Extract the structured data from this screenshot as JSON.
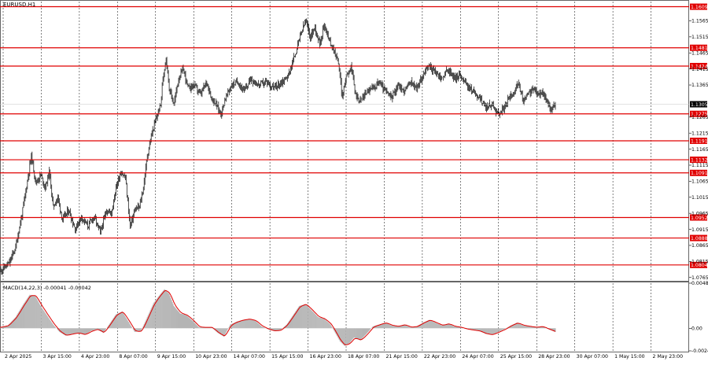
{
  "window": {
    "symbol_title": "EURUSD,H1"
  },
  "indicator": {
    "label": "MACD(14,22,3) -0.00041 -0.00042"
  },
  "colors": {
    "background": "#ffffff",
    "candle": "#000000",
    "level_line": "#e00000",
    "level_tag_bg": "#e00000",
    "level_tag_text": "#ffffff",
    "current_tag_bg": "#000000",
    "current_tag_text": "#ffffff",
    "grid": "#000000",
    "macd_hist": "#b4b4b4",
    "macd_signal": "#e00000"
  },
  "chart_data": [
    {
      "type": "candlestick",
      "symbol": "EURUSD",
      "timeframe": "H1",
      "grid": true,
      "ylim": [
        1.0757,
        1.1625
      ],
      "price_ticks": [
        "1.1565",
        "1.1515",
        "1.1465",
        "1.1415",
        "1.1365",
        "1.1265",
        "1.1215",
        "1.1165",
        "1.1115",
        "1.1065",
        "1.1015",
        "1.0965",
        "1.0915",
        "1.0865",
        "1.0815",
        "1.0765"
      ],
      "x_ticks": [
        "2 Apr 2025",
        "3 Apr 15:00",
        "4 Apr 23:00",
        "8 Apr 07:00",
        "9 Apr 15:00",
        "10 Apr 23:00",
        "14 Apr 07:00",
        "15 Apr 15:00",
        "16 Apr 23:00",
        "18 Apr 07:00",
        "21 Apr 15:00",
        "22 Apr 23:00",
        "24 Apr 07:00",
        "25 Apr 15:00",
        "28 Apr 23:00",
        "30 Apr 07:00",
        "1 May 15:00",
        "2 May 23:00"
      ],
      "levels": [
        {
          "label": "1.1609",
          "value": 1.1609
        },
        {
          "label": "1.1481",
          "value": 1.1481
        },
        {
          "label": "1.1424",
          "value": 1.1424
        },
        {
          "label": "1.1275",
          "value": 1.1275
        },
        {
          "label": "1.1191",
          "value": 1.1191
        },
        {
          "label": "1.1132",
          "value": 1.1132
        },
        {
          "label": "1.1091",
          "value": 1.1091
        },
        {
          "label": "1.0952",
          "value": 1.0952
        },
        {
          "label": "1.0888",
          "value": 1.0888
        },
        {
          "label": "1.0804",
          "value": 1.0804
        }
      ],
      "current_price": {
        "label": "1.1305",
        "value": 1.1305
      },
      "price_path": [
        [
          0,
          1.0785
        ],
        [
          12,
          1.081
        ],
        [
          20,
          1.086
        ],
        [
          28,
          1.096
        ],
        [
          34,
          1.105
        ],
        [
          40,
          1.1145
        ],
        [
          46,
          1.106
        ],
        [
          52,
          1.1085
        ],
        [
          58,
          1.1045
        ],
        [
          63,
          1.1095
        ],
        [
          68,
          1.0985
        ],
        [
          74,
          1.1015
        ],
        [
          80,
          1.0945
        ],
        [
          88,
          1.0975
        ],
        [
          96,
          1.0915
        ],
        [
          104,
          1.0955
        ],
        [
          112,
          1.0925
        ],
        [
          120,
          1.0955
        ],
        [
          128,
          1.0905
        ],
        [
          136,
          1.0975
        ],
        [
          142,
          1.0965
        ],
        [
          148,
          1.1045
        ],
        [
          154,
          1.1095
        ],
        [
          160,
          1.1075
        ],
        [
          166,
          1.0925
        ],
        [
          172,
          1.0975
        ],
        [
          178,
          1.0985
        ],
        [
          183,
          1.1045
        ],
        [
          188,
          1.1145
        ],
        [
          194,
          1.1215
        ],
        [
          200,
          1.1265
        ],
        [
          205,
          1.1305
        ],
        [
          208,
          1.1385
        ],
        [
          212,
          1.1455
        ],
        [
          216,
          1.1355
        ],
        [
          222,
          1.1305
        ],
        [
          228,
          1.1385
        ],
        [
          234,
          1.1415
        ],
        [
          240,
          1.1355
        ],
        [
          248,
          1.1365
        ],
        [
          256,
          1.1335
        ],
        [
          264,
          1.1375
        ],
        [
          270,
          1.1325
        ],
        [
          276,
          1.1305
        ],
        [
          282,
          1.1275
        ],
        [
          288,
          1.1325
        ],
        [
          296,
          1.1365
        ],
        [
          304,
          1.1375
        ],
        [
          312,
          1.1345
        ],
        [
          320,
          1.1385
        ],
        [
          330,
          1.1365
        ],
        [
          340,
          1.1375
        ],
        [
          350,
          1.1355
        ],
        [
          360,
          1.1375
        ],
        [
          368,
          1.1395
        ],
        [
          376,
          1.1455
        ],
        [
          384,
          1.1525
        ],
        [
          390,
          1.1565
        ],
        [
          396,
          1.1515
        ],
        [
          402,
          1.1545
        ],
        [
          408,
          1.1495
        ],
        [
          414,
          1.1555
        ],
        [
          420,
          1.1505
        ],
        [
          426,
          1.1475
        ],
        [
          432,
          1.1435
        ],
        [
          437,
          1.1325
        ],
        [
          442,
          1.1395
        ],
        [
          448,
          1.1425
        ],
        [
          454,
          1.1335
        ],
        [
          460,
          1.1315
        ],
        [
          468,
          1.1345
        ],
        [
          476,
          1.1355
        ],
        [
          484,
          1.1375
        ],
        [
          492,
          1.1345
        ],
        [
          500,
          1.1325
        ],
        [
          508,
          1.1365
        ],
        [
          516,
          1.1345
        ],
        [
          524,
          1.1375
        ],
        [
          532,
          1.1355
        ],
        [
          540,
          1.1395
        ],
        [
          548,
          1.1425
        ],
        [
          556,
          1.1405
        ],
        [
          564,
          1.1385
        ],
        [
          572,
          1.1415
        ],
        [
          580,
          1.1385
        ],
        [
          588,
          1.1395
        ],
        [
          596,
          1.1365
        ],
        [
          604,
          1.1345
        ],
        [
          612,
          1.1325
        ],
        [
          620,
          1.1295
        ],
        [
          628,
          1.1305
        ],
        [
          636,
          1.1275
        ],
        [
          644,
          1.1295
        ],
        [
          650,
          1.1325
        ],
        [
          656,
          1.1345
        ],
        [
          662,
          1.1365
        ],
        [
          668,
          1.1315
        ],
        [
          674,
          1.1335
        ],
        [
          680,
          1.1355
        ],
        [
          686,
          1.1335
        ],
        [
          692,
          1.1345
        ],
        [
          698,
          1.1315
        ],
        [
          704,
          1.1285
        ],
        [
          709,
          1.1305
        ]
      ]
    },
    {
      "type": "area",
      "name": "MACD(14,22,3)",
      "ylim": [
        -0.00243,
        0.00485
      ],
      "y_ticks": [
        "0.00485",
        "0.00",
        "-0.00243"
      ],
      "macd_path": [
        [
          0,
          0.0001
        ],
        [
          10,
          0.0003
        ],
        [
          20,
          0.0012
        ],
        [
          30,
          0.0026
        ],
        [
          38,
          0.0036
        ],
        [
          45,
          0.0035
        ],
        [
          52,
          0.0024
        ],
        [
          60,
          0.0014
        ],
        [
          68,
          0.0004
        ],
        [
          76,
          -0.0004
        ],
        [
          84,
          -0.0008
        ],
        [
          92,
          -0.0006
        ],
        [
          100,
          -0.0005
        ],
        [
          108,
          -0.0007
        ],
        [
          116,
          -0.0003
        ],
        [
          124,
          -0.0001
        ],
        [
          132,
          -0.0005
        ],
        [
          140,
          0.0005
        ],
        [
          148,
          0.0015
        ],
        [
          156,
          0.0018
        ],
        [
          164,
          0.0007
        ],
        [
          172,
          -0.0004
        ],
        [
          180,
          -0.0003
        ],
        [
          188,
          0.0012
        ],
        [
          196,
          0.0027
        ],
        [
          204,
          0.0036
        ],
        [
          210,
          0.0042
        ],
        [
          216,
          0.0037
        ],
        [
          222,
          0.0024
        ],
        [
          230,
          0.0016
        ],
        [
          238,
          0.0014
        ],
        [
          246,
          0.0008
        ],
        [
          254,
          0.0001
        ],
        [
          262,
          0.0001
        ],
        [
          270,
          0.0001
        ],
        [
          278,
          -0.0005
        ],
        [
          286,
          -0.0009
        ],
        [
          294,
          0.0004
        ],
        [
          302,
          0.0007
        ],
        [
          310,
          0.0009
        ],
        [
          318,
          0.001
        ],
        [
          326,
          0.0008
        ],
        [
          334,
          0.0002
        ],
        [
          342,
          -0.0001
        ],
        [
          350,
          -0.0003
        ],
        [
          358,
          -0.0002
        ],
        [
          366,
          0.0004
        ],
        [
          374,
          0.0014
        ],
        [
          382,
          0.0024
        ],
        [
          390,
          0.0026
        ],
        [
          398,
          0.0019
        ],
        [
          406,
          0.0012
        ],
        [
          414,
          0.001
        ],
        [
          422,
          0.0004
        ],
        [
          428,
          -0.0005
        ],
        [
          434,
          -0.0014
        ],
        [
          440,
          -0.0019
        ],
        [
          446,
          -0.0016
        ],
        [
          452,
          -0.001
        ],
        [
          460,
          -0.0013
        ],
        [
          468,
          -0.0006
        ],
        [
          476,
          0.0002
        ],
        [
          484,
          0.0004
        ],
        [
          492,
          0.0006
        ],
        [
          500,
          0.0003
        ],
        [
          508,
          0.0002
        ],
        [
          516,
          0.0004
        ],
        [
          524,
          0.0001
        ],
        [
          532,
          0.0002
        ],
        [
          540,
          0.0006
        ],
        [
          548,
          0.0009
        ],
        [
          556,
          0.0006
        ],
        [
          564,
          0.0003
        ],
        [
          572,
          0.0005
        ],
        [
          580,
          0.0002
        ],
        [
          588,
          0.0001
        ],
        [
          596,
          -0.0001
        ],
        [
          604,
          -0.0002
        ],
        [
          612,
          -0.0003
        ],
        [
          620,
          -0.0006
        ],
        [
          628,
          -0.0007
        ],
        [
          636,
          -0.0004
        ],
        [
          644,
          -0.0001
        ],
        [
          652,
          0.0003
        ],
        [
          660,
          0.0006
        ],
        [
          668,
          0.0003
        ],
        [
          676,
          0.0002
        ],
        [
          684,
          0.0001
        ],
        [
          692,
          0.0002
        ],
        [
          700,
          -0.0001
        ],
        [
          709,
          -0.0004
        ]
      ]
    }
  ]
}
